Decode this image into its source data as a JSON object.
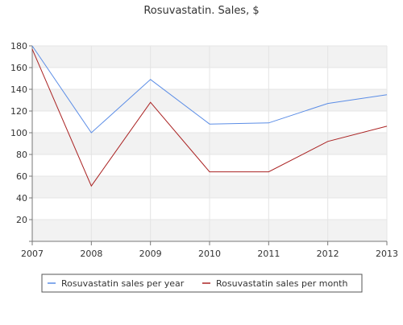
{
  "chart_data": {
    "type": "line",
    "title": "Rosuvastatin. Sales, $",
    "xlabel": "",
    "ylabel": "",
    "x": [
      "2007",
      "2008",
      "2009",
      "2010",
      "2011",
      "2012",
      "2013"
    ],
    "ylim": [
      0,
      180
    ],
    "yticks": [
      20,
      40,
      60,
      80,
      100,
      120,
      140,
      160,
      180
    ],
    "grid": true,
    "legend_position": "bottom",
    "series": [
      {
        "name": "Rosuvastatin sales per year",
        "color": "#5b8de6",
        "values": [
          180,
          100,
          149,
          108,
          109,
          127,
          135
        ]
      },
      {
        "name": "Rosuvastatin sales per month",
        "color": "#aa2222",
        "values": [
          177,
          51,
          128,
          64,
          64,
          92,
          106
        ]
      }
    ]
  }
}
